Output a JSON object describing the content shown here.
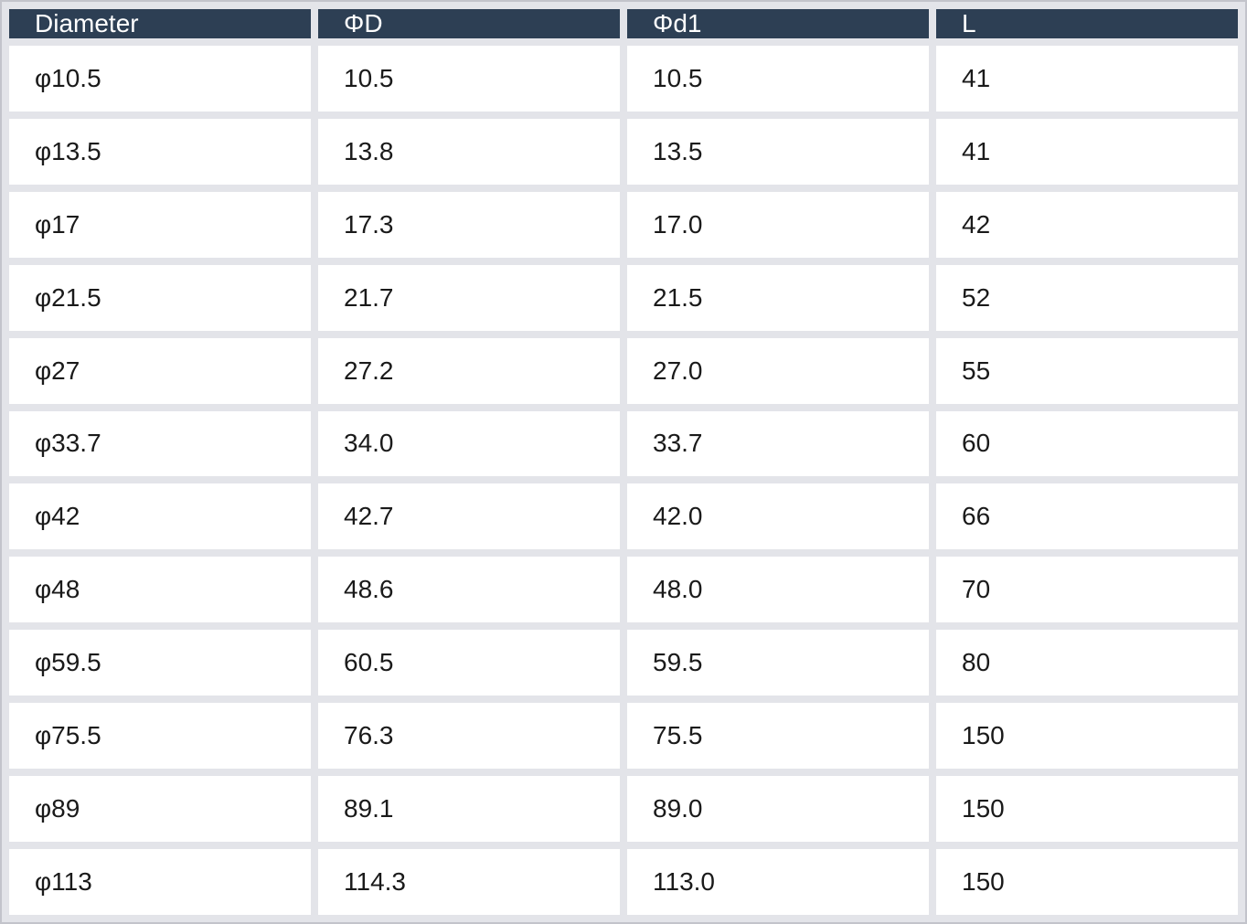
{
  "colors": {
    "header_background": "#2d3f54",
    "header_text": "#ffffff",
    "cell_background": "#ffffff",
    "cell_text": "#1a1a1a",
    "gutter": "#e3e4e9",
    "outer_border": "#c3c4cb"
  },
  "chart_data": {
    "type": "table",
    "columns": [
      "Diameter",
      "ΦD",
      "Φd1",
      "L"
    ],
    "rows": [
      [
        "φ10.5",
        "10.5",
        "10.5",
        "41"
      ],
      [
        "φ13.5",
        "13.8",
        "13.5",
        "41"
      ],
      [
        "φ17",
        "17.3",
        "17.0",
        "42"
      ],
      [
        "φ21.5",
        "21.7",
        "21.5",
        "52"
      ],
      [
        "φ27",
        "27.2",
        "27.0",
        "55"
      ],
      [
        "φ33.7",
        "34.0",
        "33.7",
        "60"
      ],
      [
        "φ42",
        "42.7",
        "42.0",
        "66"
      ],
      [
        "φ48",
        "48.6",
        "48.0",
        "70"
      ],
      [
        "φ59.5",
        "60.5",
        "59.5",
        "80"
      ],
      [
        "φ75.5",
        "76.3",
        "75.5",
        "150"
      ],
      [
        "φ89",
        "89.1",
        "89.0",
        "150"
      ],
      [
        "φ113",
        "114.3",
        "113.0",
        "150"
      ]
    ]
  }
}
